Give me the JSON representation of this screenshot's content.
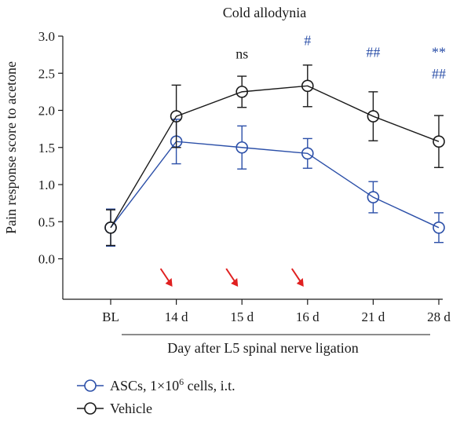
{
  "chart_data": {
    "type": "line",
    "title": "Cold allodynia",
    "ylabel": "Pain response score to acetone",
    "xlabel": "Day after L5 spinal nerve ligation",
    "categories": [
      "BL",
      "14 d",
      "15 d",
      "16 d",
      "21 d",
      "28 d"
    ],
    "ylim": [
      -0.4,
      3.0
    ],
    "yticks": [
      "0.0",
      "0.5",
      "1.0",
      "1.5",
      "2.0",
      "2.5",
      "3.0"
    ],
    "grid": false,
    "legend_position": "bottom-left",
    "series": [
      {
        "name": "ASCs, 1×10",
        "name_sup": "6",
        "name_suffix": " cells, i.t.",
        "color": "#2b4fa8",
        "values": [
          0.42,
          1.58,
          1.5,
          1.42,
          0.83,
          0.42
        ],
        "errors": [
          0.25,
          0.3,
          0.29,
          0.2,
          0.21,
          0.2
        ]
      },
      {
        "name": "Vehicle",
        "color": "#1a1a1a",
        "values": [
          0.42,
          1.92,
          2.25,
          2.33,
          1.92,
          1.58
        ],
        "errors": [
          0.24,
          0.42,
          0.21,
          0.28,
          0.33,
          0.35
        ]
      }
    ],
    "annotations": [
      {
        "category": "15 d",
        "text": "ns",
        "color": "#1a1a1a",
        "y": 2.7
      },
      {
        "category": "16 d",
        "text": "#",
        "color": "#2b4fa8",
        "y": 2.88
      },
      {
        "category": "21 d",
        "text": "##",
        "color": "#2b4fa8",
        "y": 2.72
      },
      {
        "category": "28 d",
        "text": "**",
        "color": "#2b4fa8",
        "y": 2.72
      },
      {
        "category": "28 d",
        "text": "##",
        "color": "#2b4fa8",
        "y": 2.43
      }
    ],
    "arrows": {
      "categories": [
        "14 d",
        "15 d",
        "16 d"
      ],
      "color": "#e02020"
    }
  }
}
